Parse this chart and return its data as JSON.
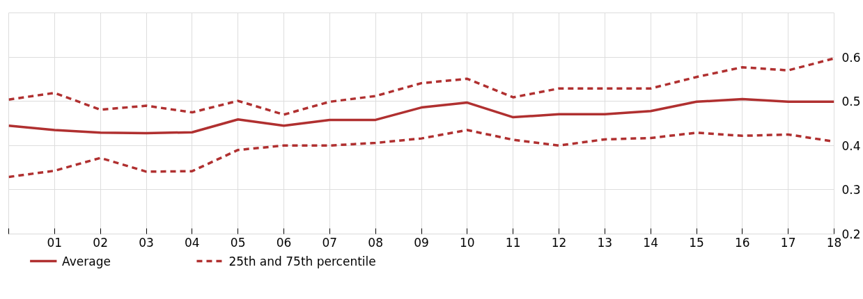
{
  "chart_data": {
    "type": "line",
    "x": [
      2000,
      2001,
      2002,
      2003,
      2004,
      2005,
      2006,
      2007,
      2008,
      2009,
      2010,
      2011,
      2012,
      2013,
      2014,
      2015,
      2016,
      2017,
      2018
    ],
    "xlim": [
      2000,
      2018
    ],
    "xticks": [
      {
        "value": 2000,
        "label": null
      },
      {
        "value": 2001,
        "label": "01"
      },
      {
        "value": 2002,
        "label": "02"
      },
      {
        "value": 2003,
        "label": "03"
      },
      {
        "value": 2004,
        "label": "04"
      },
      {
        "value": 2005,
        "label": "05"
      },
      {
        "value": 2006,
        "label": "06"
      },
      {
        "value": 2007,
        "label": "07"
      },
      {
        "value": 2008,
        "label": "08"
      },
      {
        "value": 2009,
        "label": "09"
      },
      {
        "value": 2010,
        "label": "10"
      },
      {
        "value": 2011,
        "label": "11"
      },
      {
        "value": 2012,
        "label": "12"
      },
      {
        "value": 2013,
        "label": "13"
      },
      {
        "value": 2014,
        "label": "14"
      },
      {
        "value": 2015,
        "label": "15"
      },
      {
        "value": 2016,
        "label": "16"
      },
      {
        "value": 2017,
        "label": "17"
      },
      {
        "value": 2018,
        "label": "18"
      }
    ],
    "ylim": [
      0.2,
      0.7
    ],
    "yticks": [
      0.2,
      0.3,
      0.4,
      0.5,
      0.6
    ],
    "grid": true,
    "legend": "bottom",
    "marker": "none",
    "series": [
      {
        "name": "Average",
        "color": "#b03030",
        "line_style": "solid",
        "values": [
          0.445,
          0.435,
          0.429,
          0.428,
          0.43,
          0.459,
          0.445,
          0.458,
          0.458,
          0.486,
          0.497,
          0.464,
          0.471,
          0.471,
          0.478,
          0.499,
          0.505,
          0.499,
          0.499
        ]
      },
      {
        "name": "25th and 75th percentile",
        "color": "#b03030",
        "line_style": "dashed",
        "values": [
          0.504,
          0.519,
          0.481,
          0.49,
          0.475,
          0.501,
          0.47,
          0.499,
          0.512,
          0.541,
          0.551,
          0.509,
          0.529,
          0.529,
          0.529,
          0.555,
          0.577,
          0.57,
          0.597
        ]
      },
      {
        "color": "#b03030",
        "line_style": "dashed",
        "values": [
          0.329,
          0.343,
          0.372,
          0.341,
          0.342,
          0.39,
          0.4,
          0.4,
          0.406,
          0.416,
          0.435,
          0.413,
          0.4,
          0.414,
          0.417,
          0.429,
          0.422,
          0.425,
          0.409
        ]
      }
    ]
  }
}
